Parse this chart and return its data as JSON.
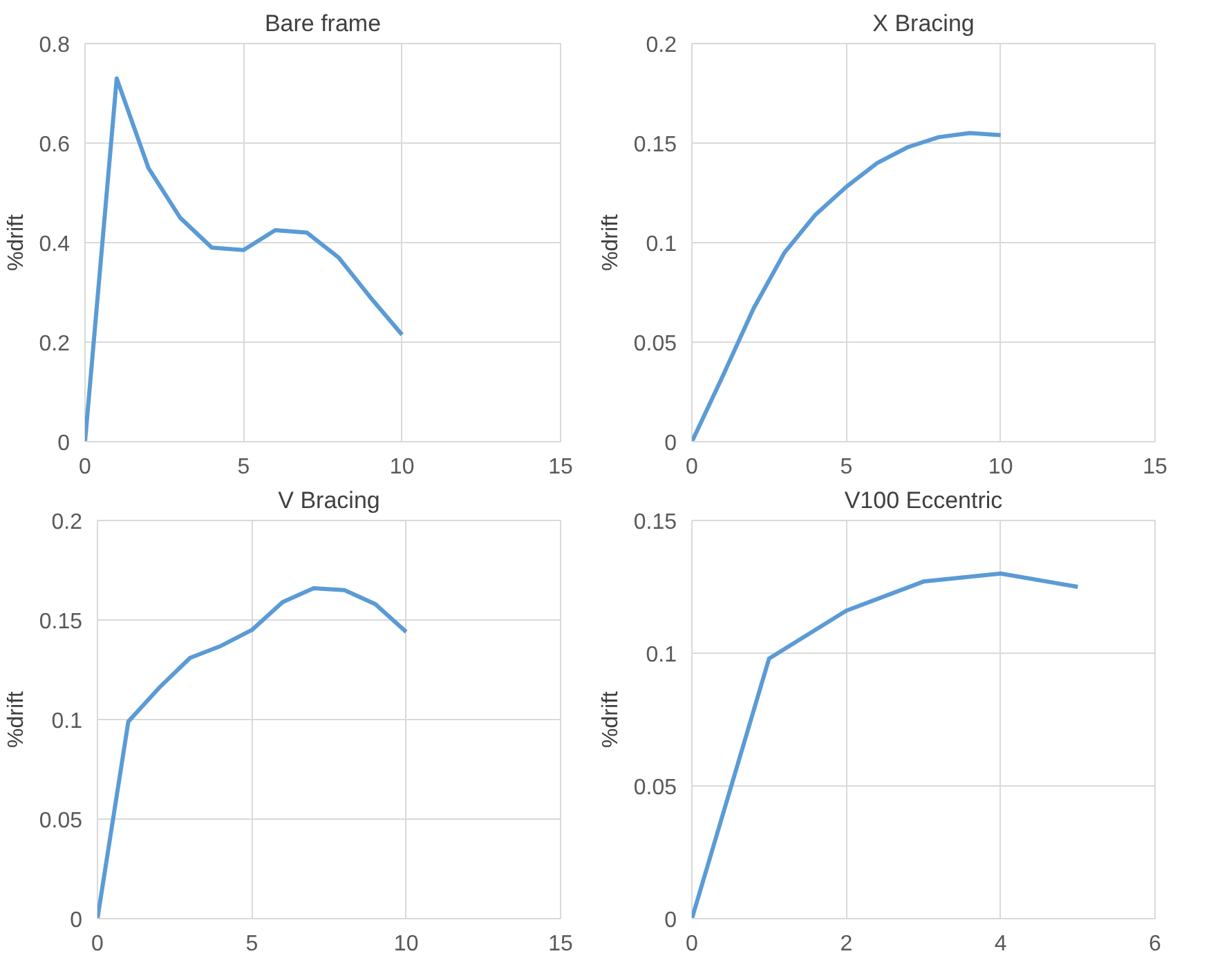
{
  "chart_data": [
    {
      "type": "line",
      "title": "Bare frame",
      "ylabel": "%drift",
      "x": [
        0,
        1,
        2,
        3,
        4,
        5,
        6,
        7,
        8,
        9,
        10
      ],
      "series": [
        {
          "color": "#5b9bd5",
          "values": [
            0,
            0.73,
            0.55,
            0.45,
            0.39,
            0.385,
            0.425,
            0.42,
            0.37,
            0.29,
            0.215
          ]
        }
      ],
      "xlim": [
        0,
        15
      ],
      "xticks": [
        0,
        5,
        10,
        15
      ],
      "ylim": [
        0,
        0.8
      ],
      "yticks": [
        0,
        0.2,
        0.4,
        0.6,
        0.8
      ],
      "grid": true,
      "line_style": "solid"
    },
    {
      "type": "line",
      "title": "X Bracing",
      "ylabel": "%drift",
      "x": [
        0,
        1,
        2,
        3,
        4,
        5,
        6,
        7,
        8,
        9,
        10
      ],
      "series": [
        {
          "color": "#5b9bd5",
          "values": [
            0,
            0.033,
            0.067,
            0.095,
            0.114,
            0.128,
            0.14,
            0.148,
            0.153,
            0.155,
            0.154
          ]
        }
      ],
      "xlim": [
        0,
        15
      ],
      "xticks": [
        0,
        5,
        10,
        15
      ],
      "ylim": [
        0,
        0.2
      ],
      "yticks": [
        0,
        0.05,
        0.1,
        0.15,
        0.2
      ],
      "grid": true,
      "line_style": "solid"
    },
    {
      "type": "line",
      "title": "V Bracing",
      "ylabel": "%drift",
      "x": [
        0,
        1,
        2,
        3,
        4,
        5,
        6,
        7,
        8,
        9,
        10
      ],
      "series": [
        {
          "color": "#5b9bd5",
          "values": [
            0,
            0.099,
            0.116,
            0.131,
            0.137,
            0.145,
            0.159,
            0.166,
            0.165,
            0.158,
            0.144
          ]
        }
      ],
      "xlim": [
        0,
        15
      ],
      "xticks": [
        0,
        5,
        10,
        15
      ],
      "ylim": [
        0,
        0.2
      ],
      "yticks": [
        0,
        0.05,
        0.1,
        0.15,
        0.2
      ],
      "grid": true,
      "line_style": "solid"
    },
    {
      "type": "line",
      "title": "V100 Eccentric",
      "ylabel": "%drift",
      "x": [
        0,
        1,
        2,
        3,
        4,
        5
      ],
      "series": [
        {
          "color": "#5b9bd5",
          "values": [
            0,
            0.098,
            0.116,
            0.127,
            0.13,
            0.125
          ]
        }
      ],
      "xlim": [
        0,
        6
      ],
      "xticks": [
        0,
        2,
        4,
        6
      ],
      "ylim": [
        0,
        0.15
      ],
      "yticks": [
        0,
        0.05,
        0.1,
        0.15
      ],
      "grid": true,
      "line_style": "solid"
    }
  ]
}
